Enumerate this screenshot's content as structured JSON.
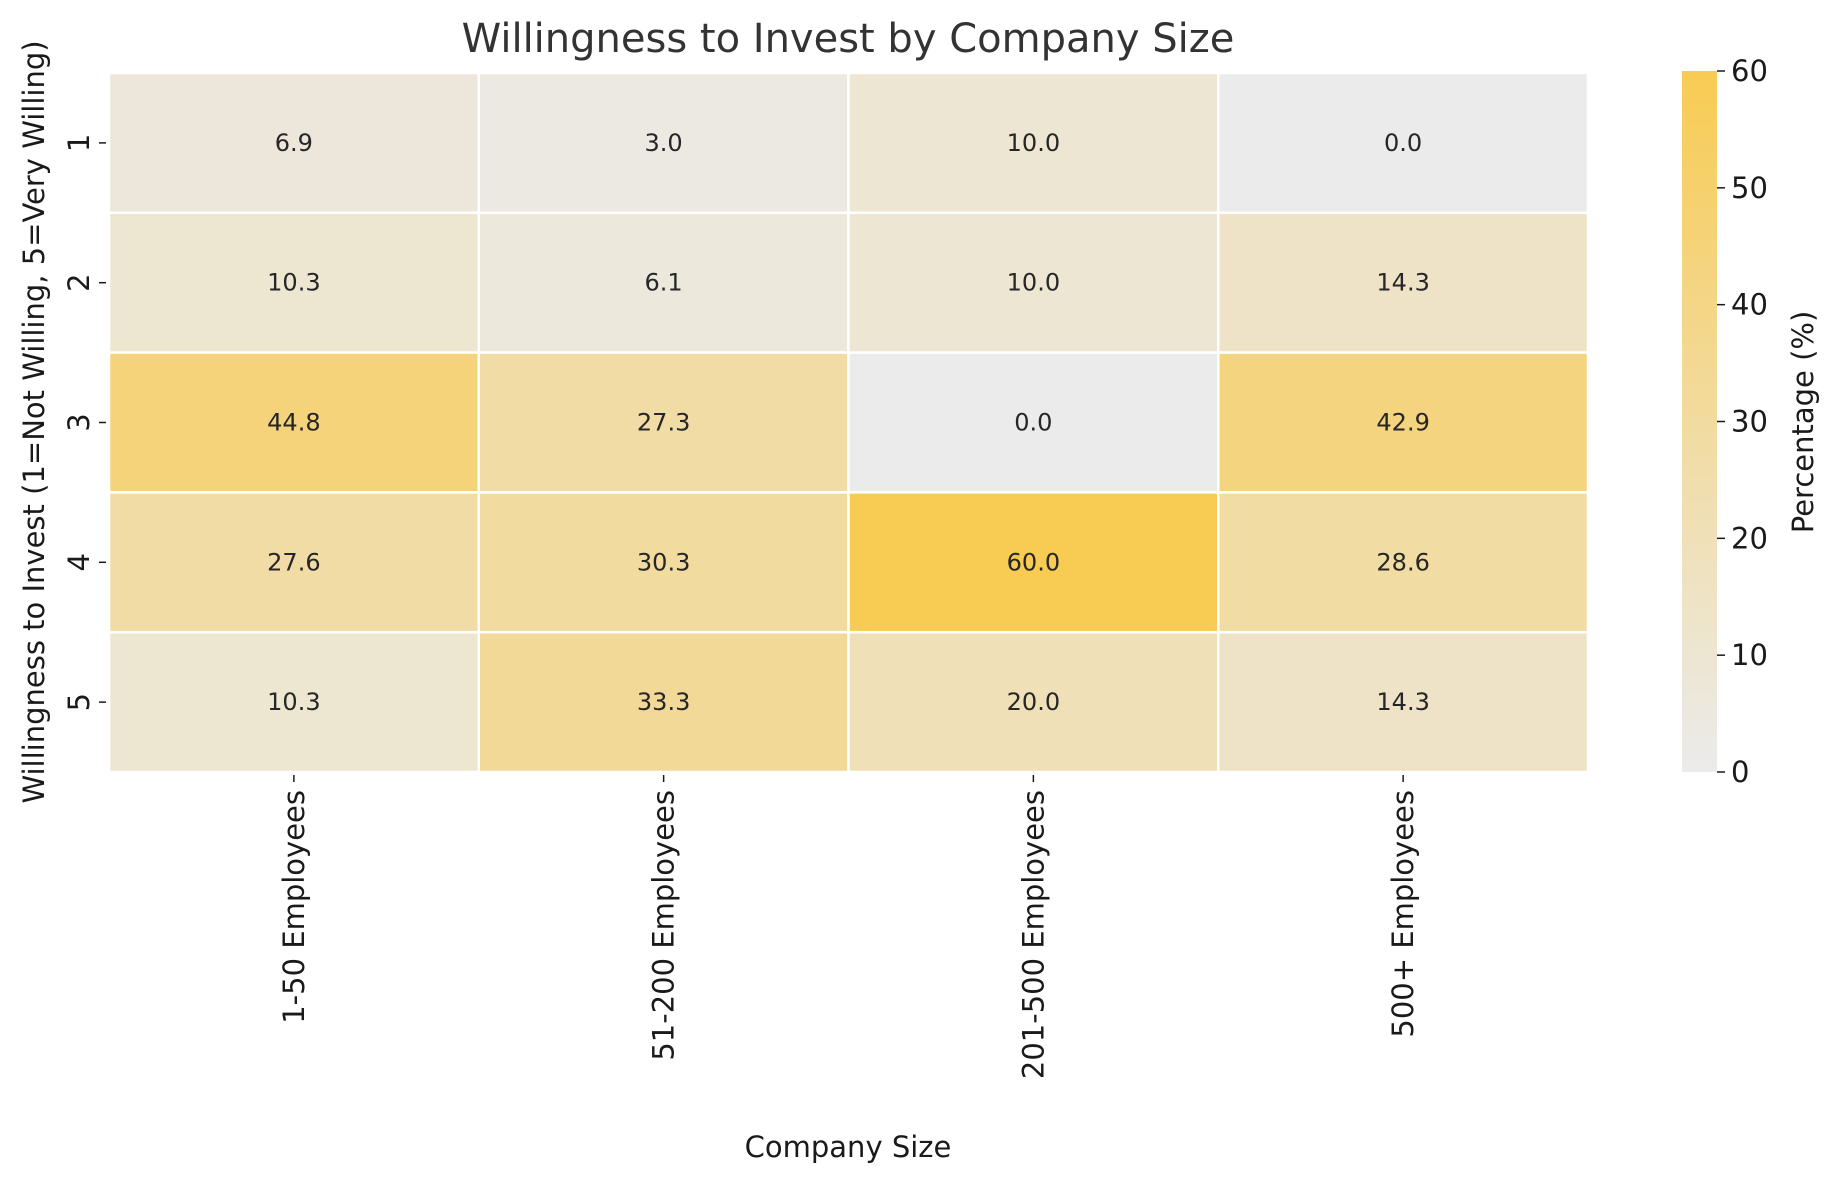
{
  "chart_data": {
    "type": "heatmap",
    "title": "Willingness to Invest by Company Size",
    "xlabel": "Company Size",
    "ylabel": "Willingness to Invest (1=Not Willing, 5=Very Willing)",
    "x_categories": [
      "1-50 Employees",
      "51-200 Employees",
      "201-500 Employees",
      "500+ Employees"
    ],
    "y_categories": [
      "1",
      "2",
      "3",
      "4",
      "5"
    ],
    "values": [
      [
        6.9,
        3.0,
        10.0,
        0.0
      ],
      [
        10.3,
        6.1,
        10.0,
        14.3
      ],
      [
        44.8,
        27.3,
        0.0,
        42.9
      ],
      [
        27.6,
        30.3,
        60.0,
        28.6
      ],
      [
        10.3,
        33.3,
        20.0,
        14.3
      ]
    ],
    "value_format": "0.1f",
    "colorbar": {
      "label": "Percentage (%)",
      "range": [
        0,
        60
      ],
      "ticks": [
        0,
        10,
        20,
        30,
        40,
        50,
        60
      ],
      "color_low": "#ebebeb",
      "color_high": "#f8cb53"
    },
    "grid": false
  }
}
